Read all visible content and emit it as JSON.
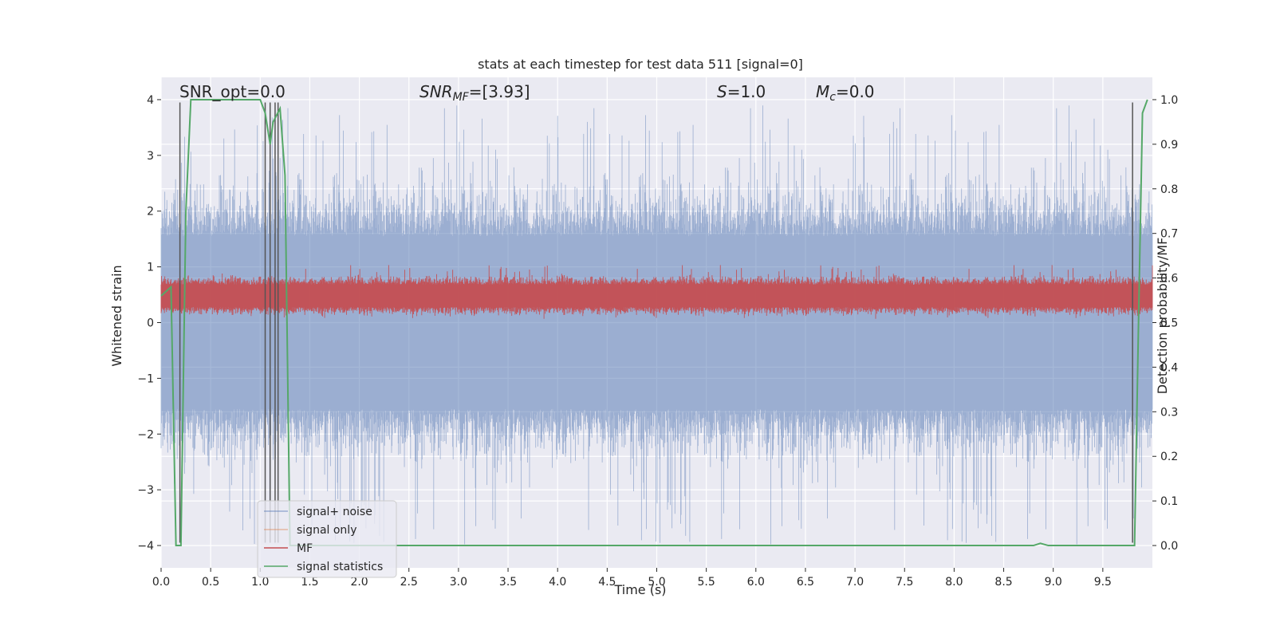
{
  "chart_data": {
    "type": "line",
    "title": "stats at each timestep for test data 511 [signal=0]",
    "xlabel": "Time (s)",
    "ylabel": "Whitened strain",
    "y2label": "Detection probability/MF",
    "xlim": [
      0.0,
      10.0
    ],
    "ylim": [
      -4.4,
      4.4
    ],
    "y2lim": [
      -0.05,
      1.05
    ],
    "xticks": [
      0.0,
      0.5,
      1.0,
      1.5,
      2.0,
      2.5,
      3.0,
      3.5,
      4.0,
      4.5,
      5.0,
      5.5,
      6.0,
      6.5,
      7.0,
      7.5,
      8.0,
      8.5,
      9.0,
      9.5
    ],
    "yticks": [
      4,
      3,
      2,
      1,
      0,
      -1,
      -2,
      -3,
      -4
    ],
    "y2ticks": [
      1.0,
      0.9,
      0.8,
      0.7,
      0.6,
      0.5,
      0.4,
      0.3,
      0.2,
      0.1,
      0.0
    ],
    "grid": true,
    "legend_position": "lower-left",
    "colors": {
      "background": "#eaeaf2",
      "grid": "#ffffff",
      "noise": "#4c72b0",
      "signal_only": "#dd8452",
      "mf": "#c44e52",
      "stats": "#55a868",
      "vlines": "#555555"
    },
    "annotations": {
      "snr_opt": "SNR_opt=0.0",
      "snr_mf_italic": "SNR",
      "snr_mf_sub": "MF",
      "snr_mf_value": "=[3.93]",
      "s_italic": "S",
      "s_value": "=1.0",
      "mc_italic": "M",
      "mc_sub": "c",
      "mc_value": "=0.0"
    },
    "series": [
      {
        "name": "signal+ noise",
        "key": "noise",
        "style": "noise-band",
        "center": 0.0,
        "typical_envelope": [
          -1.6,
          1.6
        ],
        "extremes": [
          -4.0,
          3.9
        ]
      },
      {
        "name": "signal only",
        "key": "signal_only",
        "values": []
      },
      {
        "name": "MF",
        "key": "mf",
        "style": "band",
        "axis": "y2",
        "center": 0.56,
        "typical_envelope": [
          0.5,
          0.65
        ],
        "extremes": [
          0.5,
          0.63
        ]
      },
      {
        "name": "signal statistics",
        "key": "stats",
        "axis": "y2",
        "x": [
          0.0,
          0.1,
          0.15,
          0.2,
          0.25,
          0.3,
          0.5,
          1.0,
          1.05,
          1.1,
          1.13,
          1.2,
          1.25,
          1.3,
          1.5,
          2.0,
          3.0,
          4.0,
          5.0,
          6.0,
          7.0,
          8.0,
          8.8,
          8.87,
          8.95,
          9.0,
          9.5,
          9.82,
          9.86,
          9.9,
          9.95
        ],
        "y": [
          0.56,
          0.58,
          0.0,
          0.0,
          0.75,
          1.0,
          1.0,
          1.0,
          0.97,
          0.9,
          0.95,
          0.98,
          0.83,
          0.0,
          0.0,
          0.0,
          0.0,
          0.0,
          0.0,
          0.0,
          0.0,
          0.0,
          0.0,
          0.005,
          0.0,
          0.0,
          0.0,
          0.0,
          0.5,
          0.97,
          1.0
        ]
      }
    ],
    "vlines": [
      0.19,
      1.05,
      1.1,
      1.15,
      1.18,
      9.8
    ]
  }
}
